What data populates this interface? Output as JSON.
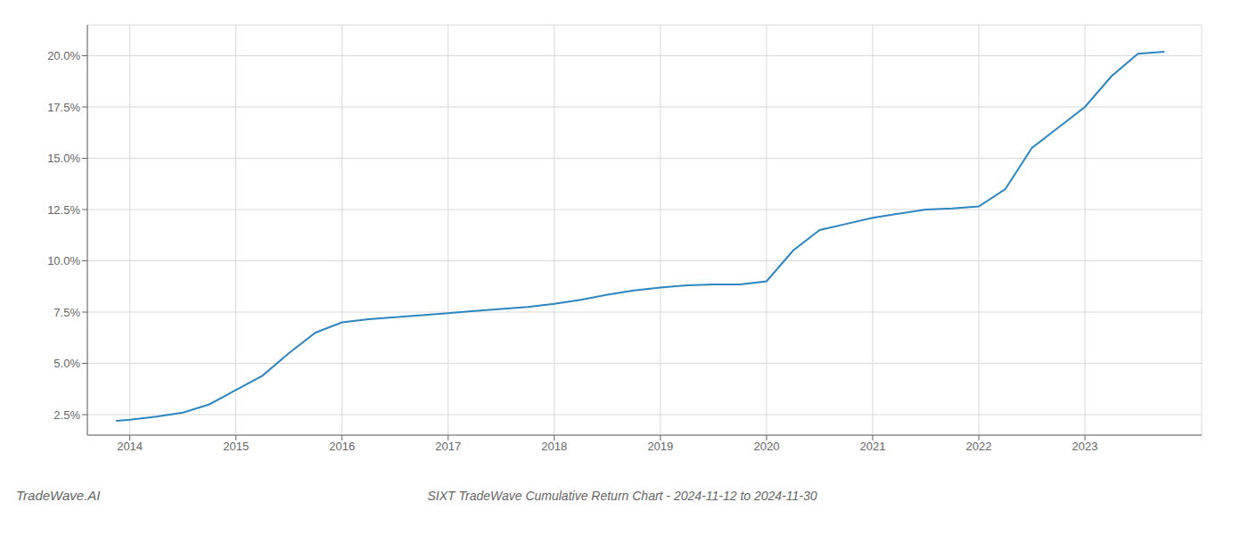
{
  "chart_data": {
    "type": "line",
    "title": "SIXT TradeWave Cumulative Return Chart - 2024-11-12 to 2024-11-30",
    "annotations": [
      "TradeWave.AI"
    ],
    "color": "#2e86c1",
    "x": [
      2013.87,
      2014.0,
      2014.25,
      2014.5,
      2014.75,
      2015.0,
      2015.25,
      2015.5,
      2015.75,
      2016.0,
      2016.25,
      2016.5,
      2016.75,
      2017.0,
      2017.25,
      2017.5,
      2017.75,
      2018.0,
      2018.25,
      2018.5,
      2018.75,
      2019.0,
      2019.25,
      2019.5,
      2019.75,
      2020.0,
      2020.25,
      2020.5,
      2020.75,
      2021.0,
      2021.25,
      2021.5,
      2021.75,
      2022.0,
      2022.25,
      2022.5,
      2022.75,
      2023.0,
      2023.25,
      2023.5,
      2023.75
    ],
    "values": [
      2.2,
      2.25,
      2.4,
      2.6,
      3.0,
      3.7,
      4.4,
      5.5,
      6.5,
      7.0,
      7.15,
      7.25,
      7.35,
      7.45,
      7.55,
      7.65,
      7.75,
      7.9,
      8.1,
      8.35,
      8.55,
      8.7,
      8.8,
      8.85,
      8.85,
      9.0,
      10.5,
      11.5,
      11.8,
      12.1,
      12.3,
      12.5,
      12.55,
      12.65,
      13.5,
      15.5,
      16.5,
      17.5,
      19.0,
      20.1,
      20.2
    ],
    "xlim": [
      2013.6,
      2024.1
    ],
    "xticks": [
      2014,
      2015,
      2016,
      2017,
      2018,
      2019,
      2020,
      2021,
      2022,
      2023
    ],
    "ylim": [
      1.5,
      21.5
    ],
    "yticks": [
      {
        "value": 2.5,
        "label": "2.5%"
      },
      {
        "value": 5.0,
        "label": "5.0%"
      },
      {
        "value": 7.5,
        "label": "7.5%"
      },
      {
        "value": 10.0,
        "label": "10.0%"
      },
      {
        "value": 12.5,
        "label": "12.5%"
      },
      {
        "value": 15.0,
        "label": "15.0%"
      },
      {
        "value": 17.5,
        "label": "17.5%"
      },
      {
        "value": 20.0,
        "label": "20.0%"
      }
    ],
    "grid": true
  }
}
